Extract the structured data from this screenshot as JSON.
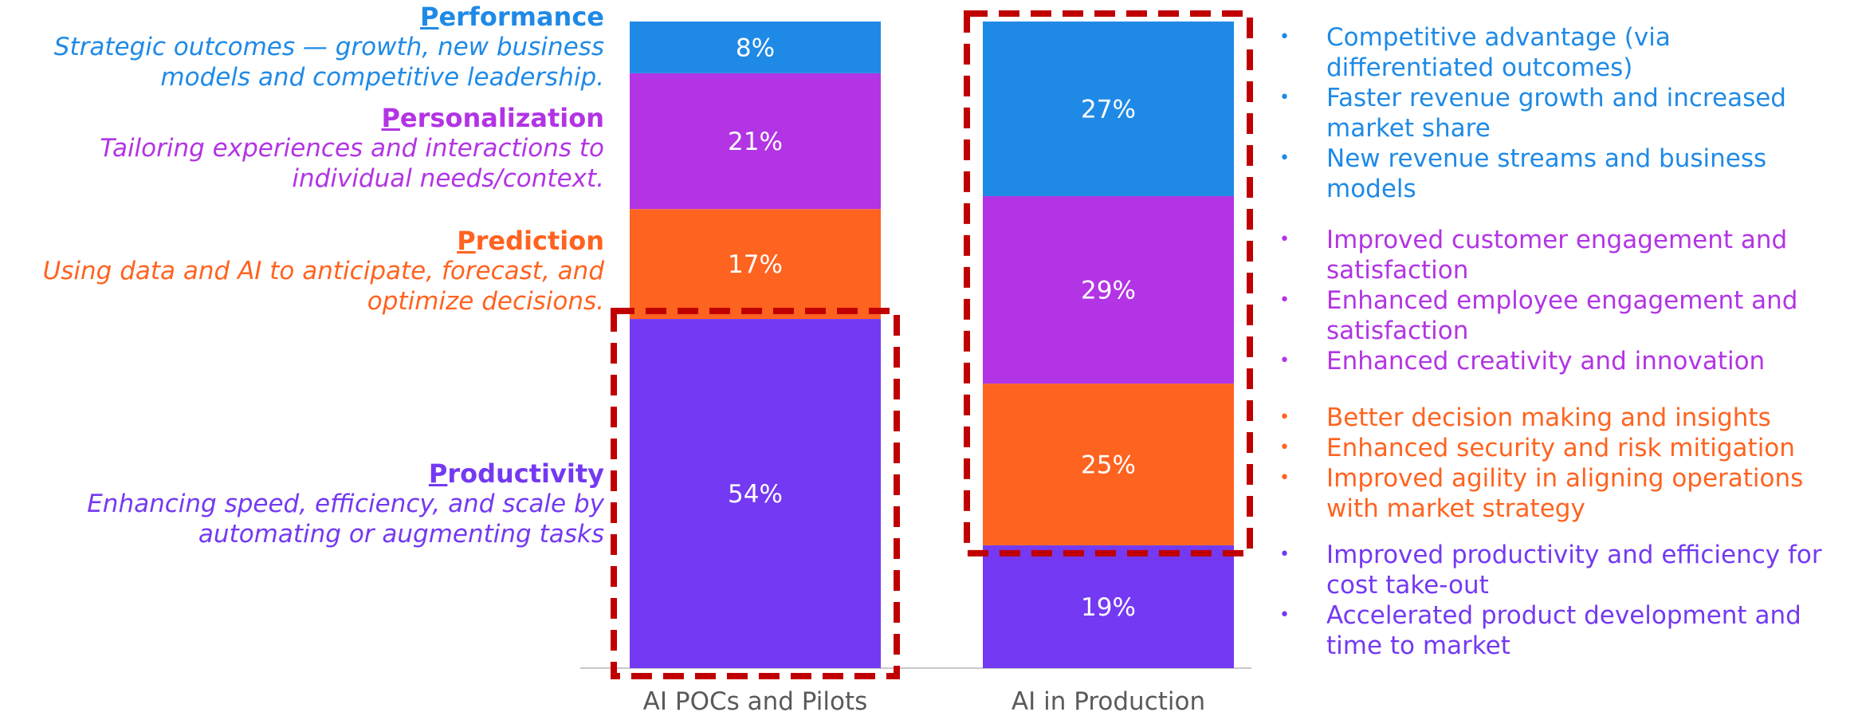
{
  "colors": {
    "performance": "#1f8ae6",
    "personalization": "#b234e4",
    "prediction": "#ff6320",
    "productivity": "#7439f2",
    "highlight": "#c00000",
    "axis": "#c8c8c8"
  },
  "left_labels": [
    {
      "key": "performance",
      "initial": "P",
      "rest": "erformance",
      "lines": [
        "Strategic outcomes — growth, new business",
        "models and competitive leadership."
      ]
    },
    {
      "key": "personalization",
      "initial": "P",
      "rest": "ersonalization",
      "lines": [
        "Tailoring experiences and interactions to",
        "individual needs/context."
      ]
    },
    {
      "key": "prediction",
      "initial": "P",
      "rest": "rediction",
      "lines": [
        "Using data and AI to anticipate, forecast, and",
        "optimize decisions."
      ]
    },
    {
      "key": "productivity",
      "initial": "P",
      "rest": "roductivity",
      "lines": [
        "Enhancing speed, efficiency, and scale by",
        "automating or augmenting tasks"
      ]
    }
  ],
  "chart_data": {
    "type": "bar",
    "stacked": true,
    "categories": [
      "AI POCs and Pilots",
      "AI in Production"
    ],
    "series": [
      {
        "name": "Productivity",
        "values": [
          54,
          19
        ],
        "labels": [
          "54%",
          "19%"
        ]
      },
      {
        "name": "Prediction",
        "values": [
          17,
          25
        ],
        "labels": [
          "17%",
          "25%"
        ]
      },
      {
        "name": "Personalization",
        "values": [
          21,
          29
        ],
        "labels": [
          "21%",
          "29%"
        ]
      },
      {
        "name": "Performance",
        "values": [
          8,
          27
        ],
        "labels": [
          "8%",
          "27%"
        ]
      }
    ],
    "ylim": [
      0,
      100
    ],
    "highlights": [
      {
        "category": "AI POCs and Pilots",
        "series": [
          "Productivity"
        ]
      },
      {
        "category": "AI in Production",
        "series": [
          "Prediction",
          "Personalization",
          "Performance"
        ]
      }
    ]
  },
  "bullet_groups": [
    {
      "key": "performance",
      "items": [
        [
          "Competitive advantage (via",
          "differentiated outcomes)"
        ],
        [
          "Faster revenue growth and increased",
          "market share"
        ],
        [
          "New revenue streams and business",
          "models"
        ]
      ]
    },
    {
      "key": "personalization",
      "items": [
        [
          "Improved customer engagement and",
          "satisfaction"
        ],
        [
          "Enhanced employee engagement and",
          "satisfaction"
        ],
        [
          "Enhanced creativity and innovation"
        ]
      ]
    },
    {
      "key": "prediction",
      "items": [
        [
          "Better decision making and insights"
        ],
        [
          "Enhanced security and risk mitigation"
        ],
        [
          "Improved agility in aligning operations",
          "with market strategy"
        ]
      ]
    },
    {
      "key": "productivity",
      "items": [
        [
          "Improved productivity and efficiency for",
          "cost take-out"
        ],
        [
          "Accelerated product development and",
          "time to market"
        ]
      ]
    }
  ]
}
